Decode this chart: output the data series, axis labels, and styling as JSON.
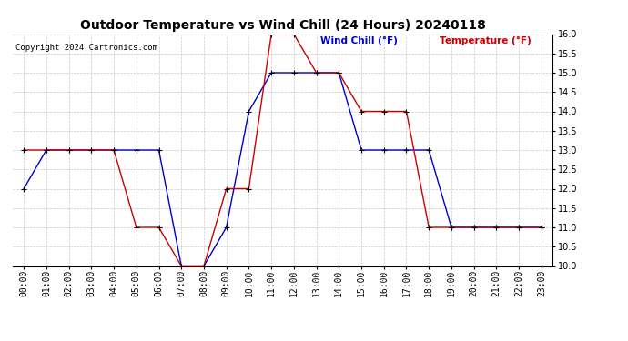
{
  "title": "Outdoor Temperature vs Wind Chill (24 Hours) 20240118",
  "copyright": "Copyright 2024 Cartronics.com",
  "legend_wind_chill": "Wind Chill (°F)",
  "legend_temperature": "Temperature (°F)",
  "x_labels": [
    "00:00",
    "01:00",
    "02:00",
    "03:00",
    "04:00",
    "05:00",
    "06:00",
    "07:00",
    "08:00",
    "09:00",
    "10:00",
    "11:00",
    "12:00",
    "13:00",
    "14:00",
    "15:00",
    "16:00",
    "17:00",
    "18:00",
    "19:00",
    "20:00",
    "21:00",
    "22:00",
    "23:00"
  ],
  "ylim": [
    10.0,
    16.0
  ],
  "ytick_step": 0.5,
  "wind_chill": [
    12.0,
    13.0,
    13.0,
    13.0,
    13.0,
    13.0,
    13.0,
    10.0,
    10.0,
    11.0,
    14.0,
    15.0,
    15.0,
    15.0,
    15.0,
    13.0,
    13.0,
    13.0,
    13.0,
    11.0,
    11.0,
    11.0,
    11.0,
    11.0
  ],
  "temperature": [
    13.0,
    13.0,
    13.0,
    13.0,
    13.0,
    11.0,
    11.0,
    10.0,
    10.0,
    12.0,
    12.0,
    16.0,
    16.0,
    15.0,
    15.0,
    14.0,
    14.0,
    14.0,
    11.0,
    11.0,
    11.0,
    11.0,
    11.0,
    11.0
  ],
  "wind_chill_color": "#0000cc",
  "temperature_color": "#cc0000",
  "marker_color": "#000000",
  "bg_color": "#ffffff",
  "grid_color": "#bbbbbb",
  "title_color": "#000000",
  "copyright_color": "#000000",
  "title_fontsize": 10,
  "copyright_fontsize": 6.5,
  "legend_fontsize": 7.5,
  "tick_fontsize": 7,
  "ytick_fontsize": 7
}
